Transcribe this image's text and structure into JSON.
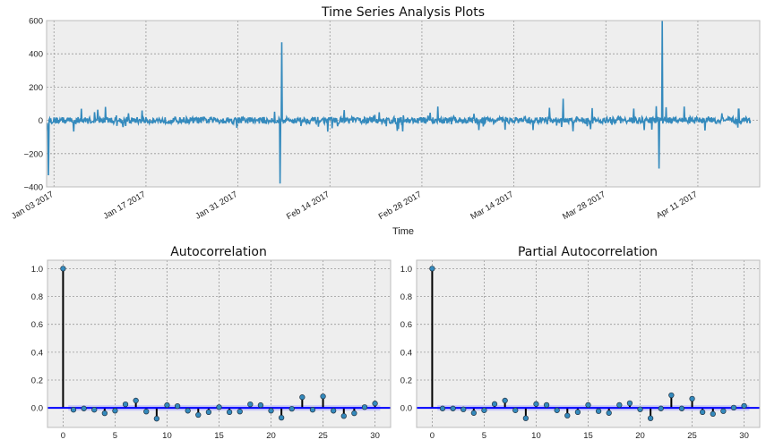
{
  "chart_data": [
    {
      "type": "line",
      "title": "Time Series Analysis Plots",
      "xlabel": "Time",
      "ylabel": "",
      "xlim": [
        "2017-01-01T21:00",
        "2017-04-20T10:00"
      ],
      "ylim": [
        -400,
        600
      ],
      "yticks": [
        -400,
        -200,
        0,
        200,
        400,
        600
      ],
      "yticklabels": [
        "−400",
        "−200",
        "0",
        "200",
        "400",
        "600"
      ],
      "xticks": [
        "2017-01-03",
        "2017-01-17",
        "2017-01-31",
        "2017-02-14",
        "2017-02-28",
        "2017-03-14",
        "2017-03-28",
        "2017-04-11"
      ],
      "xticklabels": [
        "Jan 03 2017",
        "Jan 17 2017",
        "Jan 31 2017",
        "Feb 14 2017",
        "Feb 28 2017",
        "Mar 14 2017",
        "Mar 28 2017",
        "Apr 11 2017"
      ],
      "grid": true,
      "color": "#348abd",
      "series_range": [
        "2017-01-02",
        "2017-04-19"
      ],
      "typical_range": [
        -60,
        60
      ],
      "spikes": [
        {
          "date": "2017-01-02T04:00",
          "value": -330
        },
        {
          "date": "2017-02-06T10:00",
          "value": -380
        },
        {
          "date": "2017-02-06T16:00",
          "value": 470
        },
        {
          "date": "2017-03-21T12:00",
          "value": 130
        },
        {
          "date": "2017-04-05T02:00",
          "value": -290
        },
        {
          "date": "2017-04-05T14:00",
          "value": 620
        }
      ]
    },
    {
      "type": "stem",
      "title": "Autocorrelation",
      "xlim": [
        -1.5,
        31.5
      ],
      "ylim": [
        -0.14,
        1.06
      ],
      "xticks": [
        0,
        5,
        10,
        15,
        20,
        25,
        30
      ],
      "yticks": [
        0.0,
        0.2,
        0.4,
        0.6,
        0.8,
        1.0
      ],
      "yticklabels": [
        "0.0",
        "0.2",
        "0.4",
        "0.6",
        "0.8",
        "1.0"
      ],
      "grid": true,
      "lags": [
        0,
        1,
        2,
        3,
        4,
        5,
        6,
        7,
        8,
        9,
        10,
        11,
        12,
        13,
        14,
        15,
        16,
        17,
        18,
        19,
        20,
        21,
        22,
        23,
        24,
        25,
        26,
        27,
        28,
        29,
        30
      ],
      "values": [
        1.0,
        -0.013,
        -0.004,
        -0.013,
        -0.038,
        -0.02,
        0.026,
        0.053,
        -0.026,
        -0.077,
        0.02,
        0.013,
        -0.02,
        -0.05,
        -0.03,
        0.006,
        -0.03,
        -0.026,
        0.026,
        0.02,
        -0.02,
        -0.07,
        -0.006,
        0.077,
        -0.013,
        0.083,
        -0.02,
        -0.058,
        -0.038,
        0.006,
        0.032
      ],
      "confidence": 0.02,
      "marker_color": "#348abd",
      "zero_line_color": "#0000ff"
    },
    {
      "type": "stem",
      "title": "Partial Autocorrelation",
      "xlim": [
        -1.5,
        31.5
      ],
      "ylim": [
        -0.14,
        1.06
      ],
      "xticks": [
        0,
        5,
        10,
        15,
        20,
        25,
        30
      ],
      "yticks": [
        0.0,
        0.2,
        0.4,
        0.6,
        0.8,
        1.0
      ],
      "yticklabels": [
        "0.0",
        "0.2",
        "0.4",
        "0.6",
        "0.8",
        "1.0"
      ],
      "grid": true,
      "lags": [
        0,
        1,
        2,
        3,
        4,
        5,
        6,
        7,
        8,
        9,
        10,
        11,
        12,
        13,
        14,
        15,
        16,
        17,
        18,
        19,
        20,
        21,
        22,
        23,
        24,
        25,
        26,
        27,
        28,
        29,
        30
      ],
      "values": [
        1.0,
        -0.004,
        -0.004,
        -0.01,
        -0.036,
        -0.017,
        0.028,
        0.053,
        -0.017,
        -0.074,
        0.028,
        0.021,
        -0.017,
        -0.055,
        -0.03,
        0.021,
        -0.023,
        -0.036,
        0.021,
        0.034,
        -0.01,
        -0.074,
        -0.004,
        0.091,
        -0.004,
        0.066,
        -0.03,
        -0.043,
        -0.023,
        0.002,
        0.015
      ],
      "confidence": 0.02,
      "marker_color": "#348abd",
      "zero_line_color": "#0000ff"
    }
  ]
}
